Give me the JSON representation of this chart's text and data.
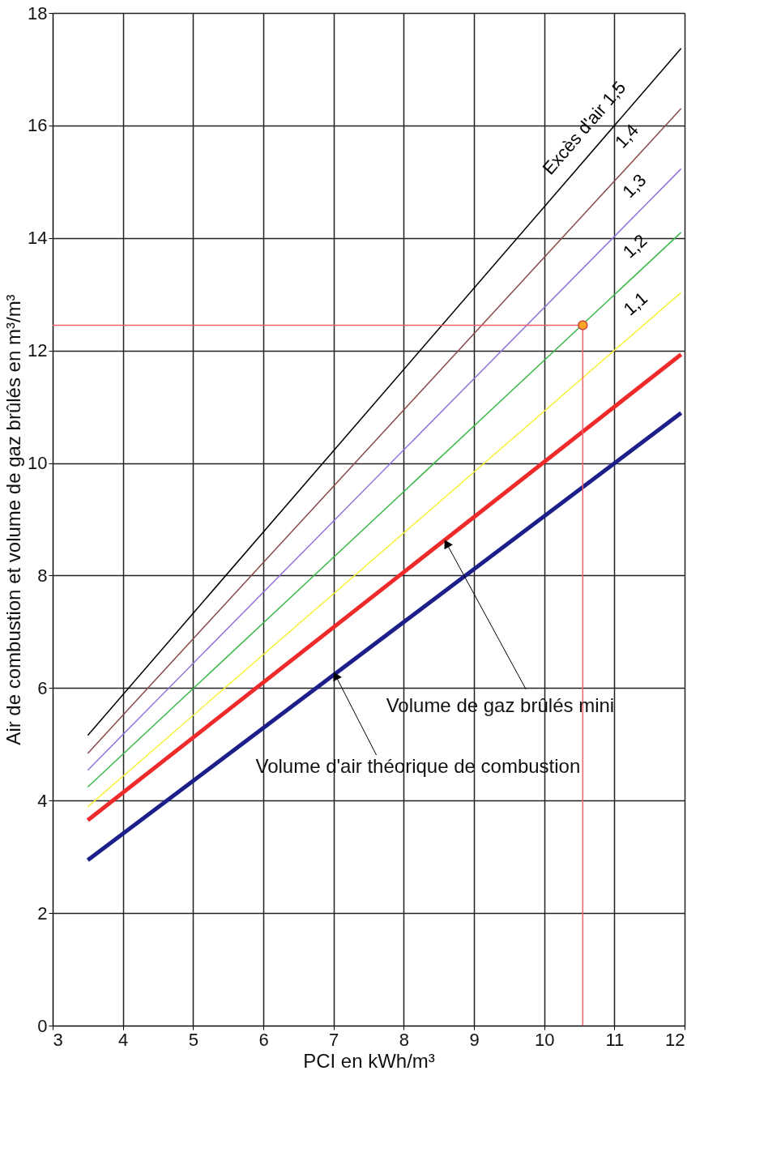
{
  "chart_data": {
    "type": "line",
    "xlabel": "PCI en kWh/m³",
    "ylabel": "Air de combustion et volume de gaz brûlés en m³/m³",
    "xlim": [
      3,
      12
    ],
    "xticks": [
      3,
      4,
      5,
      6,
      7,
      8,
      9,
      10,
      11,
      12
    ],
    "ylim": [
      0,
      18
    ],
    "yticks": [
      0,
      2,
      4,
      6,
      8,
      10,
      12,
      14,
      16,
      18
    ],
    "grid": true,
    "marker": "none",
    "line_style": "solid",
    "series": [
      {
        "name": "Excès d'air 1,5",
        "color": "#000000",
        "x": [
          3.5,
          11.95
        ],
        "values": [
          5.16,
          17.37
        ]
      },
      {
        "name": "1,4",
        "color": "#8b4a4a",
        "x": [
          3.5,
          11.95
        ],
        "values": [
          4.84,
          16.3
        ]
      },
      {
        "name": "1,3",
        "color": "#9370db",
        "x": [
          3.5,
          11.95
        ],
        "values": [
          4.54,
          15.23
        ]
      },
      {
        "name": "1,2",
        "color": "#3cb84a",
        "x": [
          3.5,
          11.95
        ],
        "values": [
          4.24,
          14.1
        ]
      },
      {
        "name": "1,1",
        "color": "#f5f23a",
        "x": [
          3.5,
          11.95
        ],
        "values": [
          3.89,
          13.03
        ]
      },
      {
        "color": "#ee2a2a",
        "x": [
          3.5,
          11.95
        ],
        "values": [
          3.65,
          11.93
        ]
      },
      {
        "color": "#1c1f8a",
        "x": [
          3.5,
          11.95
        ],
        "values": [
          2.94,
          10.89
        ]
      },
      {
        "color": "#f0606a",
        "x": [
          3,
          10.55,
          10.55
        ],
        "values": [
          12.45,
          12.45,
          0
        ]
      },
      {
        "type": "scatter",
        "marker": "circle",
        "color": "#f5a623",
        "x": [
          10.55
        ],
        "values": [
          12.45
        ]
      }
    ],
    "annotations": [
      {
        "text": "Volume de gaz brûlés mini",
        "x": 8.61,
        "y": 8.57
      },
      {
        "text": "Volume d'air théorique de combustion",
        "x": 7.03,
        "y": 6.22
      }
    ]
  }
}
